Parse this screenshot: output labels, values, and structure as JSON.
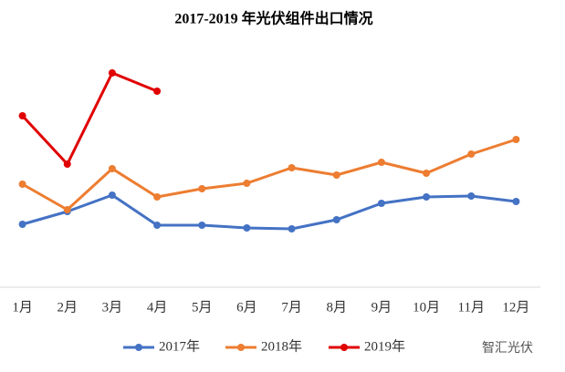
{
  "chart_data": {
    "type": "line",
    "title": "2017-2019 年光伏组件出口情况",
    "categories": [
      "1月",
      "2月",
      "3月",
      "4月",
      "5月",
      "6月",
      "7月",
      "8月",
      "9月",
      "10月",
      "11月",
      "12月"
    ],
    "series": [
      {
        "name": "2017年",
        "color": "#4472c4",
        "values": [
          27.6,
          33.2,
          40.4,
          27.2,
          27.2,
          26,
          25.6,
          29.6,
          36.8,
          39.6,
          40,
          37.6
        ]
      },
      {
        "name": "2018年",
        "color": "#ed7d31",
        "values": [
          45.2,
          34,
          52,
          39.6,
          43.2,
          45.6,
          52.4,
          49.2,
          54.8,
          50,
          58.4,
          64.8
        ]
      },
      {
        "name": "2019年",
        "color": "#e00000",
        "values": [
          75.2,
          54,
          94,
          86,
          null,
          null,
          null,
          null,
          null,
          null,
          null,
          null
        ]
      }
    ],
    "ylim": [
      0,
      100
    ],
    "legend": "bottom",
    "watermark": "智汇光伏"
  }
}
